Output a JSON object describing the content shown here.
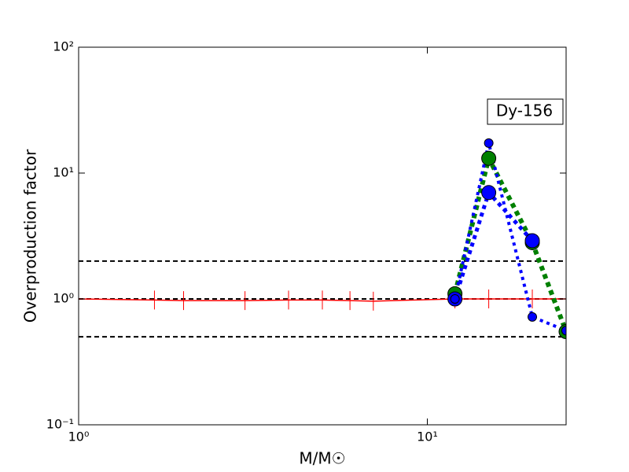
{
  "chart_data": {
    "type": "line",
    "xlabel": "M/M☉",
    "ylabel": "Overproduction factor",
    "annotation": "Dy-156",
    "xscale": "log",
    "yscale": "log",
    "xlim": [
      1,
      25
    ],
    "ylim": [
      0.1,
      100
    ],
    "xticks": [
      {
        "value": 1,
        "label": "10⁰"
      },
      {
        "value": 10,
        "label": "10¹"
      }
    ],
    "yticks": [
      {
        "value": 0.1,
        "label": "10⁻¹"
      },
      {
        "value": 1,
        "label": "10⁰"
      },
      {
        "value": 10,
        "label": "10¹"
      },
      {
        "value": 100,
        "label": "10²"
      }
    ],
    "hlines": [
      0.5,
      1,
      2
    ],
    "hline_color": "#000000",
    "series": [
      {
        "color": "#ff0000",
        "marker": "|",
        "linestyle": "solid",
        "x": [
          1,
          1.65,
          2,
          3,
          4,
          5,
          6,
          7,
          12,
          15,
          20,
          25
        ],
        "values": [
          1.0,
          0.98,
          0.97,
          0.97,
          0.98,
          0.98,
          0.97,
          0.96,
          1.0,
          1.0,
          1.0,
          1.0
        ]
      },
      {
        "color": "#008000",
        "marker": "o",
        "linestyle": "dotted",
        "x": [
          12,
          15,
          20,
          25
        ],
        "values": [
          1.1,
          13.1,
          2.8,
          0.55
        ]
      },
      {
        "color": "#0000ff",
        "marker": "o",
        "linestyle": "dotted",
        "x": [
          12,
          15,
          20
        ],
        "values": [
          1.0,
          7.0,
          2.9
        ]
      },
      {
        "color": "#0000ff",
        "marker": ".",
        "linestyle": "dotted",
        "x": [
          12,
          15,
          20,
          25
        ],
        "values": [
          1.0,
          17.3,
          0.72,
          0.56
        ]
      }
    ]
  }
}
